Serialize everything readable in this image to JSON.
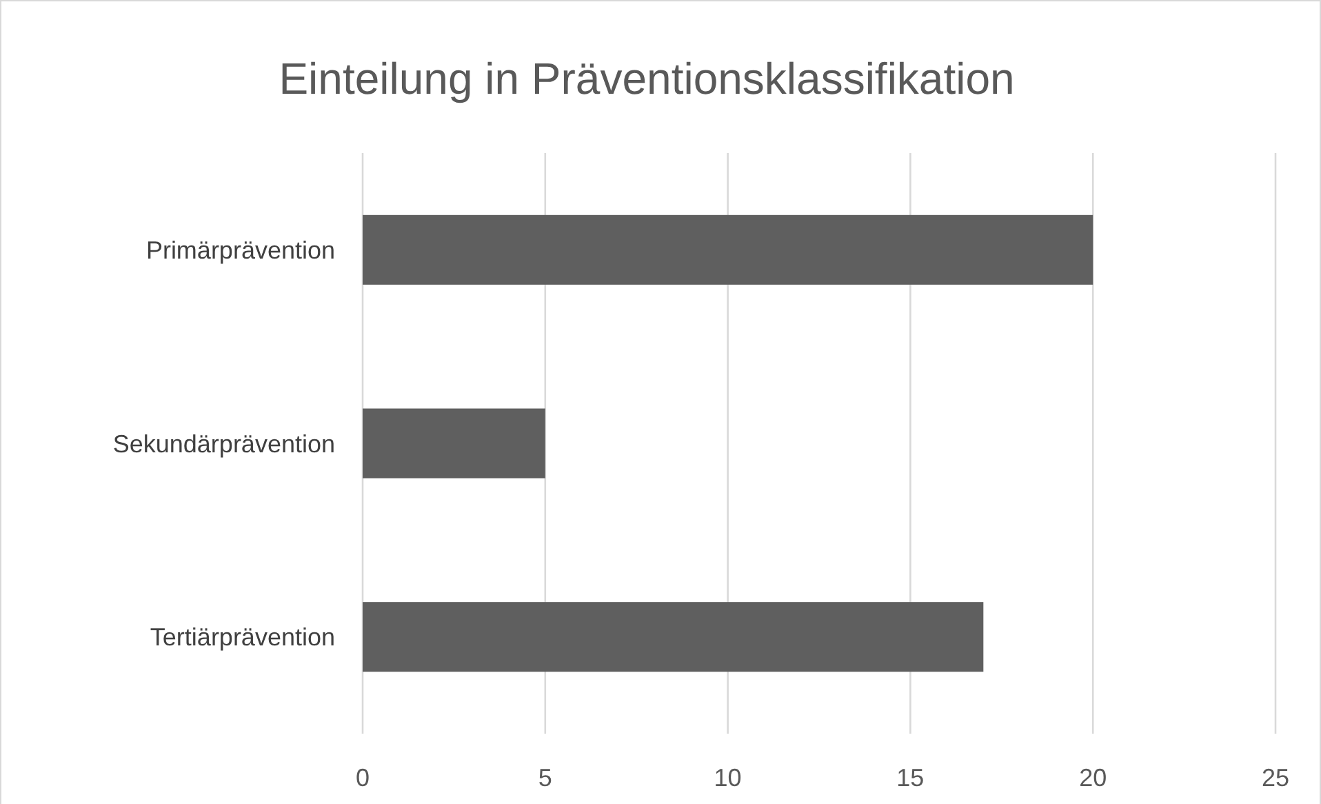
{
  "chart_data": {
    "type": "bar",
    "orientation": "horizontal",
    "title": "Einteilung in Präventionsklassifikation",
    "categories": [
      "Primärprävention",
      "Sekundärprävention",
      "Tertiärprävention"
    ],
    "values": [
      20,
      5,
      17
    ],
    "color": "#5f5f5f",
    "xlim": [
      0,
      25
    ],
    "xticks": [
      0,
      5,
      10,
      15,
      20,
      25
    ],
    "grid": "x"
  }
}
